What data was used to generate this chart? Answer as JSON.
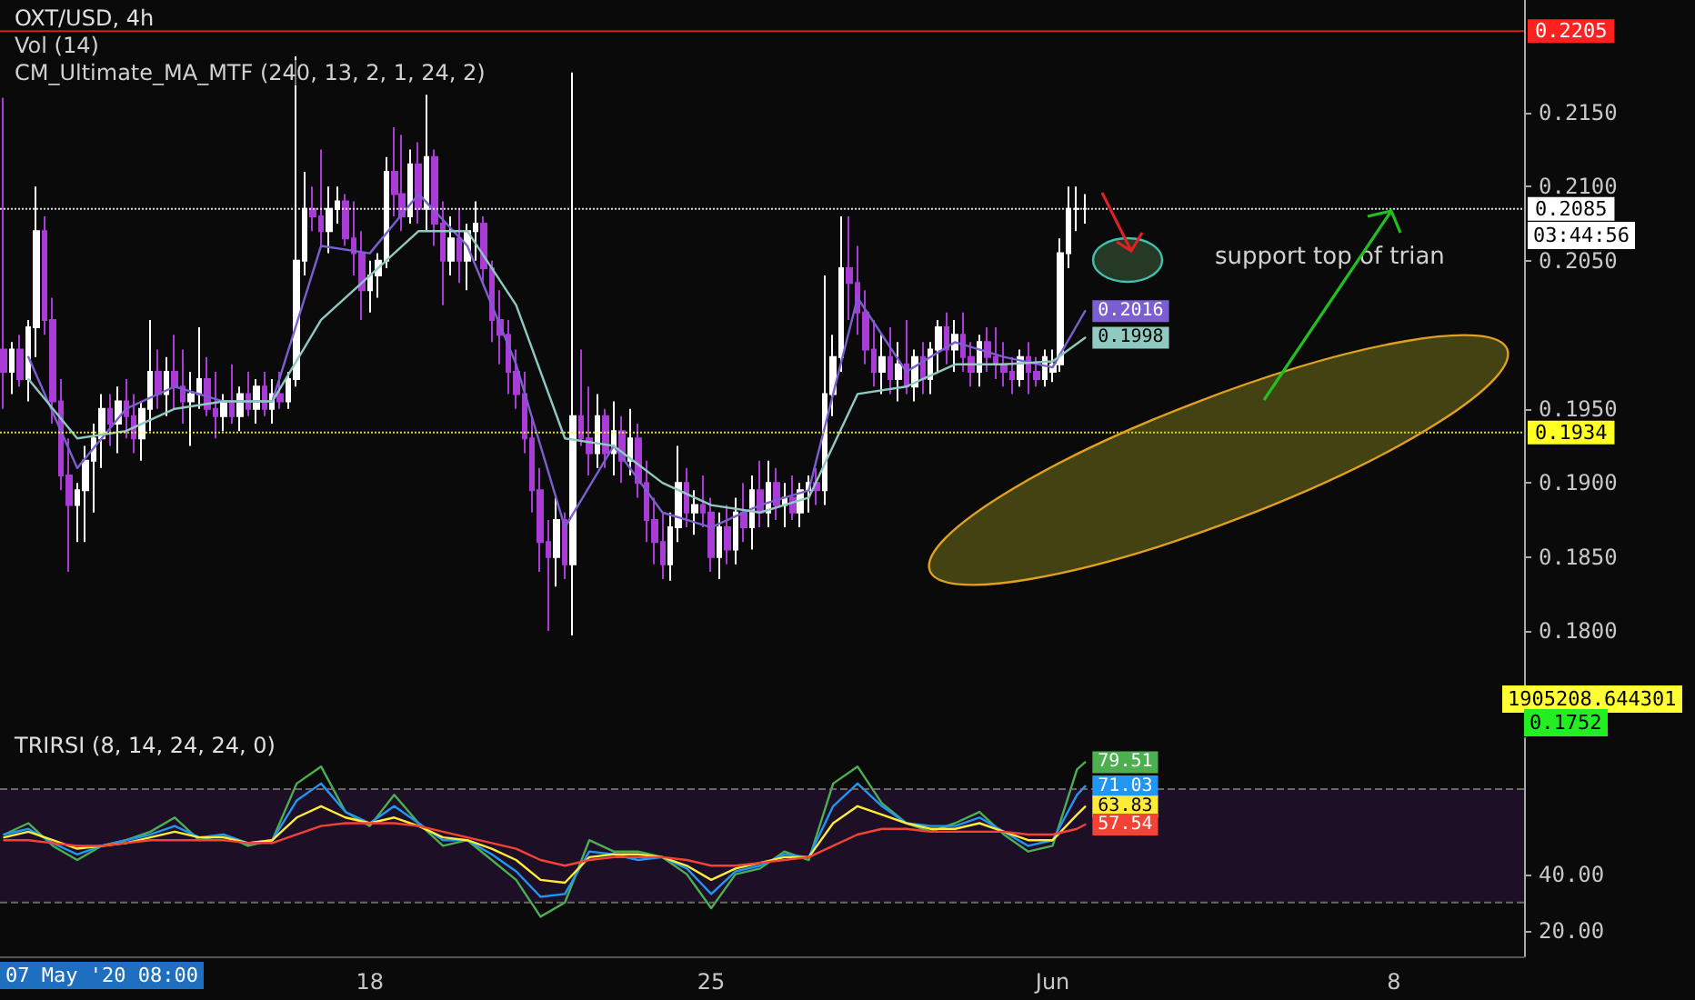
{
  "chart_data": [
    {
      "type": "candlestick",
      "title": "OXT/USD, 4h",
      "annotations": [
        "Vol (14)",
        "CM_Ultimate_MA_MTF (240, 13, 2, 1, 24, 2)",
        "support top of trian",
        "03:44:56",
        "1905208.644301",
        "0.1752"
      ],
      "x": [
        "2020-05-10T12:00",
        "2020-05-10T16:00",
        "2020-05-10T20:00",
        "2020-05-11T00:00",
        "2020-05-11T04:00",
        "2020-05-11T08:00",
        "2020-05-11T12:00",
        "2020-05-11T16:00",
        "2020-05-11T20:00",
        "2020-05-12T00:00",
        "2020-05-12T04:00",
        "2020-05-12T08:00",
        "2020-05-12T12:00",
        "2020-05-12T16:00",
        "2020-05-12T20:00",
        "2020-05-13T00:00",
        "2020-05-13T04:00",
        "2020-05-13T08:00",
        "2020-05-13T12:00",
        "2020-05-13T16:00",
        "2020-05-13T20:00",
        "2020-05-14T00:00",
        "2020-05-14T04:00",
        "2020-05-14T08:00",
        "2020-05-14T12:00",
        "2020-05-14T16:00",
        "2020-05-14T20:00",
        "2020-05-15T00:00",
        "2020-05-15T04:00",
        "2020-05-15T08:00",
        "2020-05-15T12:00",
        "2020-05-15T16:00",
        "2020-05-15T20:00",
        "2020-05-16T00:00",
        "2020-05-16T04:00",
        "2020-05-16T08:00",
        "2020-05-16T12:00",
        "2020-05-16T16:00",
        "2020-05-16T20:00",
        "2020-05-17T00:00",
        "2020-05-17T04:00",
        "2020-05-17T08:00",
        "2020-05-17T12:00",
        "2020-05-17T16:00",
        "2020-05-17T20:00",
        "2020-05-18T00:00",
        "2020-05-18T04:00",
        "2020-05-18T08:00",
        "2020-05-18T12:00",
        "2020-05-18T16:00",
        "2020-05-18T20:00",
        "2020-05-19T00:00",
        "2020-05-19T04:00",
        "2020-05-19T08:00",
        "2020-05-19T12:00",
        "2020-05-19T16:00",
        "2020-05-19T20:00",
        "2020-05-20T00:00",
        "2020-05-20T04:00",
        "2020-05-20T08:00",
        "2020-05-20T12:00",
        "2020-05-20T16:00",
        "2020-05-20T20:00",
        "2020-05-21T00:00",
        "2020-05-21T04:00",
        "2020-05-21T08:00",
        "2020-05-21T12:00",
        "2020-05-21T16:00",
        "2020-05-21T20:00",
        "2020-05-22T00:00",
        "2020-05-22T04:00",
        "2020-05-22T08:00",
        "2020-05-22T12:00",
        "2020-05-22T16:00",
        "2020-05-22T20:00",
        "2020-05-23T00:00",
        "2020-05-23T04:00",
        "2020-05-23T08:00",
        "2020-05-23T12:00",
        "2020-05-23T16:00",
        "2020-05-23T20:00",
        "2020-05-24T00:00",
        "2020-05-24T04:00",
        "2020-05-24T08:00",
        "2020-05-24T12:00",
        "2020-05-24T16:00",
        "2020-05-24T20:00",
        "2020-05-25T00:00",
        "2020-05-25T04:00",
        "2020-05-25T08:00",
        "2020-05-25T12:00",
        "2020-05-25T16:00",
        "2020-05-25T20:00",
        "2020-05-26T00:00",
        "2020-05-26T04:00",
        "2020-05-26T08:00",
        "2020-05-26T12:00",
        "2020-05-26T16:00",
        "2020-05-26T20:00",
        "2020-05-27T00:00",
        "2020-05-27T04:00",
        "2020-05-27T08:00",
        "2020-05-27T12:00",
        "2020-05-27T16:00",
        "2020-05-27T20:00",
        "2020-05-28T00:00",
        "2020-05-28T04:00",
        "2020-05-28T08:00",
        "2020-05-28T12:00",
        "2020-05-28T16:00",
        "2020-05-28T20:00",
        "2020-05-29T00:00",
        "2020-05-29T04:00",
        "2020-05-29T08:00",
        "2020-05-29T12:00",
        "2020-05-29T16:00",
        "2020-05-29T20:00",
        "2020-05-30T00:00",
        "2020-05-30T04:00",
        "2020-05-30T08:00",
        "2020-05-30T12:00",
        "2020-05-30T16:00",
        "2020-05-30T20:00",
        "2020-05-31T00:00",
        "2020-05-31T04:00",
        "2020-05-31T08:00",
        "2020-05-31T12:00",
        "2020-05-31T16:00",
        "2020-05-31T20:00",
        "2020-06-01T00:00",
        "2020-06-01T04:00",
        "2020-06-01T08:00",
        "2020-06-01T12:00",
        "2020-06-01T16:00"
      ],
      "ohlc": [
        [
          0.199,
          0.216,
          0.195,
          0.1975
        ],
        [
          0.1975,
          0.1995,
          0.196,
          0.199
        ],
        [
          0.199,
          0.2,
          0.1965,
          0.197
        ],
        [
          0.197,
          0.201,
          0.1955,
          0.2005
        ],
        [
          0.2005,
          0.21,
          0.1985,
          0.207
        ],
        [
          0.207,
          0.208,
          0.2,
          0.201
        ],
        [
          0.201,
          0.2025,
          0.194,
          0.1955
        ],
        [
          0.1955,
          0.197,
          0.1895,
          0.1905
        ],
        [
          0.1905,
          0.193,
          0.184,
          0.1885
        ],
        [
          0.1885,
          0.19,
          0.186,
          0.1895
        ],
        [
          0.1895,
          0.1925,
          0.186,
          0.1915
        ],
        [
          0.1915,
          0.194,
          0.188,
          0.193
        ],
        [
          0.193,
          0.196,
          0.191,
          0.195
        ],
        [
          0.195,
          0.196,
          0.1925,
          0.194
        ],
        [
          0.194,
          0.1965,
          0.192,
          0.1955
        ],
        [
          0.1955,
          0.197,
          0.193,
          0.1945
        ],
        [
          0.1945,
          0.196,
          0.192,
          0.193
        ],
        [
          0.193,
          0.1955,
          0.1915,
          0.195
        ],
        [
          0.195,
          0.201,
          0.1935,
          0.1975
        ],
        [
          0.1975,
          0.199,
          0.195,
          0.196
        ],
        [
          0.196,
          0.1985,
          0.1945,
          0.1975
        ],
        [
          0.1975,
          0.2,
          0.195,
          0.1965
        ],
        [
          0.1965,
          0.199,
          0.194,
          0.1955
        ],
        [
          0.1955,
          0.1975,
          0.1925,
          0.196
        ],
        [
          0.196,
          0.2005,
          0.195,
          0.197
        ],
        [
          0.197,
          0.1985,
          0.1945,
          0.195
        ],
        [
          0.195,
          0.1975,
          0.193,
          0.1945
        ],
        [
          0.1945,
          0.196,
          0.1935,
          0.1955
        ],
        [
          0.1955,
          0.198,
          0.194,
          0.1945
        ],
        [
          0.1945,
          0.1965,
          0.1935,
          0.196
        ],
        [
          0.196,
          0.1975,
          0.1945,
          0.195
        ],
        [
          0.195,
          0.197,
          0.194,
          0.1965
        ],
        [
          0.1965,
          0.1975,
          0.1945,
          0.195
        ],
        [
          0.195,
          0.197,
          0.194,
          0.196
        ],
        [
          0.196,
          0.1975,
          0.195,
          0.1955
        ],
        [
          0.1955,
          0.1975,
          0.195,
          0.197
        ],
        [
          0.197,
          0.2188,
          0.1965,
          0.205
        ],
        [
          0.205,
          0.211,
          0.204,
          0.2085
        ],
        [
          0.2085,
          0.21,
          0.207,
          0.208
        ],
        [
          0.208,
          0.2125,
          0.206,
          0.207
        ],
        [
          0.207,
          0.21,
          0.2055,
          0.2085
        ],
        [
          0.2085,
          0.21,
          0.2075,
          0.209
        ],
        [
          0.209,
          0.2095,
          0.206,
          0.2065
        ],
        [
          0.2065,
          0.209,
          0.204,
          0.2055
        ],
        [
          0.2055,
          0.207,
          0.201,
          0.203
        ],
        [
          0.203,
          0.205,
          0.2015,
          0.204
        ],
        [
          0.204,
          0.2055,
          0.2025,
          0.205
        ],
        [
          0.205,
          0.212,
          0.2045,
          0.211
        ],
        [
          0.211,
          0.214,
          0.208,
          0.2095
        ],
        [
          0.2095,
          0.2135,
          0.207,
          0.208
        ],
        [
          0.208,
          0.2125,
          0.2075,
          0.2115
        ],
        [
          0.2115,
          0.213,
          0.2075,
          0.2085
        ],
        [
          0.2085,
          0.2162,
          0.207,
          0.212
        ],
        [
          0.212,
          0.2125,
          0.206,
          0.2075
        ],
        [
          0.2075,
          0.209,
          0.202,
          0.205
        ],
        [
          0.205,
          0.208,
          0.204,
          0.2065
        ],
        [
          0.2065,
          0.2085,
          0.2035,
          0.205
        ],
        [
          0.205,
          0.2075,
          0.203,
          0.207
        ],
        [
          0.207,
          0.209,
          0.205,
          0.2075
        ],
        [
          0.2075,
          0.208,
          0.2035,
          0.2045
        ],
        [
          0.2045,
          0.205,
          0.1995,
          0.201
        ],
        [
          0.201,
          0.203,
          0.198,
          0.2
        ],
        [
          0.2,
          0.201,
          0.196,
          0.1975
        ],
        [
          0.1975,
          0.199,
          0.195,
          0.196
        ],
        [
          0.196,
          0.1975,
          0.192,
          0.193
        ],
        [
          0.193,
          0.1945,
          0.188,
          0.1895
        ],
        [
          0.1895,
          0.191,
          0.184,
          0.186
        ],
        [
          0.186,
          0.1875,
          0.18,
          0.185
        ],
        [
          0.185,
          0.189,
          0.183,
          0.1875
        ],
        [
          0.1875,
          0.188,
          0.1835,
          0.1845
        ],
        [
          0.1845,
          0.2177,
          0.1797,
          0.1945
        ],
        [
          0.1945,
          0.199,
          0.1925,
          0.193
        ],
        [
          0.193,
          0.1965,
          0.1905,
          0.192
        ],
        [
          0.192,
          0.196,
          0.191,
          0.1945
        ],
        [
          0.1945,
          0.195,
          0.191,
          0.192
        ],
        [
          0.192,
          0.1955,
          0.1905,
          0.1935
        ],
        [
          0.1935,
          0.1945,
          0.19,
          0.1915
        ],
        [
          0.1915,
          0.195,
          0.1905,
          0.193
        ],
        [
          0.193,
          0.194,
          0.189,
          0.19
        ],
        [
          0.19,
          0.1915,
          0.186,
          0.1875
        ],
        [
          0.1875,
          0.189,
          0.1845,
          0.186
        ],
        [
          0.186,
          0.188,
          0.1835,
          0.1845
        ],
        [
          0.1845,
          0.188,
          0.1834,
          0.187
        ],
        [
          0.187,
          0.1925,
          0.186,
          0.19
        ],
        [
          0.19,
          0.191,
          0.187,
          0.188
        ],
        [
          0.188,
          0.1895,
          0.1865,
          0.1885
        ],
        [
          0.1885,
          0.1905,
          0.187,
          0.188
        ],
        [
          0.188,
          0.189,
          0.184,
          0.185
        ],
        [
          0.185,
          0.188,
          0.1835,
          0.187
        ],
        [
          0.187,
          0.1885,
          0.1845,
          0.1855
        ],
        [
          0.1855,
          0.189,
          0.1845,
          0.188
        ],
        [
          0.188,
          0.19,
          0.186,
          0.187
        ],
        [
          0.187,
          0.1905,
          0.1855,
          0.1895
        ],
        [
          0.1895,
          0.1915,
          0.187,
          0.188
        ],
        [
          0.188,
          0.1915,
          0.187,
          0.19
        ],
        [
          0.19,
          0.191,
          0.1875,
          0.1885
        ],
        [
          0.1885,
          0.19,
          0.187,
          0.189
        ],
        [
          0.189,
          0.1905,
          0.1875,
          0.188
        ],
        [
          0.188,
          0.19,
          0.187,
          0.1895
        ],
        [
          0.1895,
          0.1905,
          0.188,
          0.19
        ],
        [
          0.19,
          0.191,
          0.1885,
          0.1895
        ],
        [
          0.1895,
          0.204,
          0.1885,
          0.196
        ],
        [
          0.196,
          0.2,
          0.1945,
          0.1985
        ],
        [
          0.1985,
          0.208,
          0.1975,
          0.2045
        ],
        [
          0.2045,
          0.208,
          0.201,
          0.2035
        ],
        [
          0.2035,
          0.206,
          0.2,
          0.2015
        ],
        [
          0.2015,
          0.203,
          0.198,
          0.199
        ],
        [
          0.199,
          0.201,
          0.1965,
          0.1975
        ],
        [
          0.1975,
          0.2,
          0.196,
          0.1985
        ],
        [
          0.1985,
          0.2005,
          0.196,
          0.197
        ],
        [
          0.197,
          0.1995,
          0.1955,
          0.198
        ],
        [
          0.198,
          0.201,
          0.196,
          0.1965
        ],
        [
          0.1965,
          0.199,
          0.1955,
          0.1985
        ],
        [
          0.1985,
          0.1995,
          0.196,
          0.197
        ],
        [
          0.197,
          0.1995,
          0.196,
          0.199
        ],
        [
          0.199,
          0.201,
          0.1975,
          0.2005
        ],
        [
          0.2005,
          0.2015,
          0.198,
          0.199
        ],
        [
          0.199,
          0.201,
          0.1975,
          0.2
        ],
        [
          0.2,
          0.2015,
          0.1975,
          0.1985
        ],
        [
          0.1985,
          0.1995,
          0.1965,
          0.1975
        ],
        [
          0.1975,
          0.2,
          0.1965,
          0.1995
        ],
        [
          0.1995,
          0.2005,
          0.1975,
          0.1985
        ],
        [
          0.1985,
          0.2005,
          0.197,
          0.198
        ],
        [
          0.198,
          0.1995,
          0.1965,
          0.1975
        ],
        [
          0.1975,
          0.1985,
          0.196,
          0.197
        ],
        [
          0.197,
          0.199,
          0.1965,
          0.1985
        ],
        [
          0.1985,
          0.1995,
          0.196,
          0.1975
        ],
        [
          0.1975,
          0.1985,
          0.1965,
          0.197
        ],
        [
          0.197,
          0.199,
          0.1965,
          0.1985
        ],
        [
          0.1975,
          0.199,
          0.1968,
          0.198
        ],
        [
          0.198,
          0.2065,
          0.1975,
          0.2055
        ],
        [
          0.2055,
          0.21,
          0.2045,
          0.2085
        ],
        [
          0.2085,
          0.21,
          0.207,
          0.2085
        ],
        [
          0.2085,
          0.2095,
          0.2075,
          0.2085
        ]
      ],
      "colors": [
        "#a93bd6",
        "#ffffff",
        "#a93bd6",
        "#ffffff",
        "#ffffff",
        "#a93bd6",
        "#a93bd6",
        "#a93bd6",
        "#a93bd6",
        "#ffffff",
        "#ffffff",
        "#ffffff",
        "#ffffff",
        "#a93bd6",
        "#ffffff",
        "#a93bd6",
        "#a93bd6",
        "#ffffff",
        "#ffffff",
        "#a93bd6",
        "#ffffff",
        "#a93bd6",
        "#a93bd6",
        "#ffffff",
        "#ffffff",
        "#a93bd6",
        "#a93bd6",
        "#ffffff",
        "#a93bd6",
        "#ffffff",
        "#a93bd6",
        "#ffffff",
        "#a93bd6",
        "#ffffff",
        "#a93bd6",
        "#ffffff",
        "#ffffff",
        "#ffffff",
        "#a93bd6",
        "#a93bd6",
        "#ffffff",
        "#ffffff",
        "#a93bd6",
        "#a93bd6",
        "#a93bd6",
        "#ffffff",
        "#ffffff",
        "#ffffff",
        "#a93bd6",
        "#a93bd6",
        "#ffffff",
        "#a93bd6",
        "#ffffff",
        "#a93bd6",
        "#a93bd6",
        "#ffffff",
        "#a93bd6",
        "#ffffff",
        "#ffffff",
        "#a93bd6",
        "#a93bd6",
        "#a93bd6",
        "#a93bd6",
        "#a93bd6",
        "#a93bd6",
        "#a93bd6",
        "#a93bd6",
        "#a93bd6",
        "#ffffff",
        "#a93bd6",
        "#ffffff",
        "#a93bd6",
        "#a93bd6",
        "#ffffff",
        "#a93bd6",
        "#ffffff",
        "#a93bd6",
        "#ffffff",
        "#a93bd6",
        "#a93bd6",
        "#a93bd6",
        "#a93bd6",
        "#ffffff",
        "#ffffff",
        "#a93bd6",
        "#ffffff",
        "#a93bd6",
        "#a93bd6",
        "#ffffff",
        "#a93bd6",
        "#ffffff",
        "#a93bd6",
        "#ffffff",
        "#a93bd6",
        "#ffffff",
        "#a93bd6",
        "#ffffff",
        "#a93bd6",
        "#ffffff",
        "#ffffff",
        "#a93bd6",
        "#ffffff",
        "#ffffff",
        "#ffffff",
        "#a93bd6",
        "#a93bd6",
        "#a93bd6",
        "#a93bd6",
        "#ffffff",
        "#a93bd6",
        "#ffffff",
        "#a93bd6",
        "#ffffff",
        "#a93bd6",
        "#ffffff",
        "#ffffff",
        "#a93bd6",
        "#ffffff",
        "#a93bd6",
        "#a93bd6",
        "#ffffff",
        "#a93bd6",
        "#a93bd6",
        "#a93bd6",
        "#a93bd6",
        "#ffffff",
        "#a93bd6",
        "#a93bd6",
        "#ffffff",
        "#ffffff",
        "#ffffff",
        "#ffffff",
        "#ffffff",
        "#ffffff"
      ],
      "series": [
        {
          "type": "line",
          "color": "#7b5fd0",
          "x": [
            "2020-05-11T00:00",
            "2020-05-12T00:00",
            "2020-05-13T00:00",
            "2020-05-14T00:00",
            "2020-05-15T00:00",
            "2020-05-16T00:00",
            "2020-05-17T00:00",
            "2020-05-18T00:00",
            "2020-05-19T00:00",
            "2020-05-20T00:00",
            "2020-05-21T00:00",
            "2020-05-22T00:00",
            "2020-05-23T00:00",
            "2020-05-24T00:00",
            "2020-05-25T00:00",
            "2020-05-26T00:00",
            "2020-05-27T00:00",
            "2020-05-28T00:00",
            "2020-05-29T00:00",
            "2020-05-30T00:00",
            "2020-05-31T00:00",
            "2020-06-01T00:00",
            "2020-06-01T16:00"
          ],
          "values": [
            0.1985,
            0.191,
            0.195,
            0.1965,
            0.1955,
            0.1955,
            0.206,
            0.2055,
            0.2095,
            0.206,
            0.198,
            0.187,
            0.1925,
            0.188,
            0.187,
            0.1885,
            0.1895,
            0.2025,
            0.1975,
            0.1995,
            0.1985,
            0.1978,
            0.2016
          ],
          "value_labels": [
            null,
            null,
            null,
            null,
            null,
            null,
            null,
            null,
            null,
            null,
            null,
            null,
            null,
            null,
            null,
            null,
            null,
            null,
            null,
            null,
            null,
            null,
            "0.2016"
          ]
        },
        {
          "type": "line",
          "color": "#8fc9c0",
          "x": [
            "2020-05-11T00:00",
            "2020-05-12T00:00",
            "2020-05-13T00:00",
            "2020-05-14T00:00",
            "2020-05-15T00:00",
            "2020-05-16T00:00",
            "2020-05-17T00:00",
            "2020-05-18T00:00",
            "2020-05-19T00:00",
            "2020-05-20T00:00",
            "2020-05-21T00:00",
            "2020-05-22T00:00",
            "2020-05-23T00:00",
            "2020-05-24T00:00",
            "2020-05-25T00:00",
            "2020-05-26T00:00",
            "2020-05-27T00:00",
            "2020-05-28T00:00",
            "2020-05-29T00:00",
            "2020-05-30T00:00",
            "2020-05-31T00:00",
            "2020-06-01T00:00",
            "2020-06-01T16:00"
          ],
          "values": [
            0.197,
            0.193,
            0.1935,
            0.195,
            0.1955,
            0.1955,
            0.201,
            0.204,
            0.207,
            0.207,
            0.202,
            0.193,
            0.1925,
            0.19,
            0.1885,
            0.188,
            0.189,
            0.196,
            0.1965,
            0.198,
            0.198,
            0.1982,
            0.1998
          ],
          "value_labels": [
            null,
            null,
            null,
            null,
            null,
            null,
            null,
            null,
            null,
            null,
            null,
            null,
            null,
            null,
            null,
            null,
            null,
            null,
            null,
            null,
            null,
            null,
            "0.1998"
          ]
        }
      ],
      "xlim": [
        "2020-05-10T10:00",
        "2020-06-10T16:00"
      ],
      "ylim": [
        0.1735,
        0.2226
      ],
      "yticks": [
        {
          "value": 0.18,
          "label": "0.1800"
        },
        {
          "value": 0.185,
          "label": "0.1850"
        },
        {
          "value": 0.19,
          "label": "0.1900"
        },
        {
          "value": 0.195,
          "label": "0.1950"
        },
        {
          "value": 0.205,
          "label": "0.2050"
        },
        {
          "value": 0.21,
          "label": "0.2100"
        },
        {
          "value": 0.215,
          "label": "0.2150"
        }
      ],
      "ref_lines": [
        {
          "axis": "y",
          "value": 0.2205,
          "label": "0.2205",
          "color": "#ff2020",
          "line_style": "solid"
        },
        {
          "axis": "y",
          "value": 0.2085,
          "label": "0.2085",
          "color": "#ffffff",
          "line_style": "dotted"
        },
        {
          "axis": "y",
          "value": 0.1934,
          "label": "0.1934",
          "color": "#ffff22",
          "line_style": "dotted"
        }
      ],
      "tick_labels": "y"
    },
    {
      "type": "line",
      "title": "TRIRSI (8, 14, 24, 24, 0)",
      "annotations": [
        "07 May '20 08:00"
      ],
      "x": [
        "2020-05-10T12:00",
        "2020-05-11T00:00",
        "2020-05-11T12:00",
        "2020-05-12T00:00",
        "2020-05-12T12:00",
        "2020-05-13T00:00",
        "2020-05-13T12:00",
        "2020-05-14T00:00",
        "2020-05-14T12:00",
        "2020-05-15T00:00",
        "2020-05-15T12:00",
        "2020-05-16T00:00",
        "2020-05-16T12:00",
        "2020-05-17T00:00",
        "2020-05-17T12:00",
        "2020-05-18T00:00",
        "2020-05-18T12:00",
        "2020-05-19T00:00",
        "2020-05-19T12:00",
        "2020-05-20T00:00",
        "2020-05-20T12:00",
        "2020-05-21T00:00",
        "2020-05-21T12:00",
        "2020-05-22T00:00",
        "2020-05-22T12:00",
        "2020-05-23T00:00",
        "2020-05-23T12:00",
        "2020-05-24T00:00",
        "2020-05-24T12:00",
        "2020-05-25T00:00",
        "2020-05-25T12:00",
        "2020-05-26T00:00",
        "2020-05-26T12:00",
        "2020-05-27T00:00",
        "2020-05-27T12:00",
        "2020-05-28T00:00",
        "2020-05-28T12:00",
        "2020-05-29T00:00",
        "2020-05-29T12:00",
        "2020-05-30T00:00",
        "2020-05-30T12:00",
        "2020-05-31T00:00",
        "2020-05-31T12:00",
        "2020-06-01T00:00",
        "2020-06-01T12:00",
        "2020-06-01T16:00"
      ],
      "series": [
        {
          "color": "#4caf50",
          "values": [
            54,
            58,
            50,
            45,
            50,
            52,
            55,
            60,
            52,
            54,
            50,
            52,
            72,
            78,
            62,
            57,
            68,
            58,
            50,
            52,
            45,
            38,
            25,
            30,
            52,
            48,
            48,
            46,
            40,
            28,
            40,
            42,
            48,
            45,
            72,
            78,
            65,
            58,
            55,
            58,
            62,
            54,
            48,
            50,
            77,
            79.51
          ],
          "value_labels": [
            null,
            null,
            null,
            null,
            null,
            null,
            null,
            null,
            null,
            null,
            null,
            null,
            null,
            null,
            null,
            null,
            null,
            null,
            null,
            null,
            null,
            null,
            null,
            null,
            null,
            null,
            null,
            null,
            null,
            null,
            null,
            null,
            null,
            null,
            null,
            null,
            null,
            null,
            null,
            null,
            null,
            null,
            null,
            null,
            null,
            "79.51"
          ]
        },
        {
          "color": "#2196f3",
          "values": [
            54,
            56,
            51,
            47,
            50,
            52,
            54,
            57,
            53,
            54,
            51,
            52,
            66,
            72,
            62,
            58,
            64,
            58,
            52,
            52,
            47,
            41,
            32,
            33,
            48,
            47,
            45,
            46,
            42,
            33,
            41,
            43,
            47,
            46,
            64,
            72,
            64,
            58,
            57,
            57,
            60,
            55,
            50,
            52,
            68,
            71.03
          ],
          "value_labels": [
            null,
            null,
            null,
            null,
            null,
            null,
            null,
            null,
            null,
            null,
            null,
            null,
            null,
            null,
            null,
            null,
            null,
            null,
            null,
            null,
            null,
            null,
            null,
            null,
            null,
            null,
            null,
            null,
            null,
            null,
            null,
            null,
            null,
            null,
            null,
            null,
            null,
            null,
            null,
            null,
            null,
            null,
            null,
            null,
            null,
            "71.03"
          ]
        },
        {
          "color": "#ffeb3b",
          "values": [
            53,
            55,
            52,
            49,
            50,
            51,
            53,
            55,
            53,
            53,
            51,
            52,
            60,
            64,
            60,
            58,
            60,
            57,
            53,
            52,
            49,
            45,
            38,
            37,
            46,
            47,
            47,
            46,
            43,
            38,
            42,
            44,
            46,
            46,
            58,
            64,
            61,
            58,
            56,
            56,
            58,
            55,
            52,
            52,
            61,
            63.83
          ],
          "value_labels": [
            null,
            null,
            null,
            null,
            null,
            null,
            null,
            null,
            null,
            null,
            null,
            null,
            null,
            null,
            null,
            null,
            null,
            null,
            null,
            null,
            null,
            null,
            null,
            null,
            null,
            null,
            null,
            null,
            null,
            null,
            null,
            null,
            null,
            null,
            null,
            null,
            null,
            null,
            null,
            null,
            null,
            null,
            null,
            null,
            null,
            "63.83"
          ]
        },
        {
          "color": "#f44336",
          "values": [
            52,
            52,
            51,
            50,
            50,
            51,
            52,
            52,
            52,
            52,
            51,
            51,
            54,
            57,
            58,
            58,
            58,
            57,
            55,
            53,
            51,
            49,
            45,
            43,
            45,
            46,
            46,
            46,
            45,
            43,
            43,
            44,
            45,
            46,
            50,
            54,
            56,
            56,
            55,
            55,
            55,
            55,
            54,
            54,
            56,
            57.54
          ],
          "value_labels": [
            null,
            null,
            null,
            null,
            null,
            null,
            null,
            null,
            null,
            null,
            null,
            null,
            null,
            null,
            null,
            null,
            null,
            null,
            null,
            null,
            null,
            null,
            null,
            null,
            null,
            null,
            null,
            null,
            null,
            null,
            null,
            null,
            null,
            null,
            null,
            null,
            null,
            null,
            null,
            null,
            null,
            null,
            null,
            null,
            null,
            "57.54"
          ]
        }
      ],
      "xlim": [
        "2020-05-10T10:00",
        "2020-06-10T16:00"
      ],
      "xticks": [
        {
          "value": "2020-05-18",
          "label": "18"
        },
        {
          "value": "2020-05-25",
          "label": "25"
        },
        {
          "value": "2020-06-01",
          "label": "Jun"
        },
        {
          "value": "2020-06-08",
          "label": "8"
        }
      ],
      "ylim": [
        11,
        88
      ],
      "yticks": [
        {
          "value": 20,
          "label": "20.00"
        },
        {
          "value": 40,
          "label": "40.00"
        }
      ],
      "ref_lines": [
        {
          "axis": "y",
          "value": 70,
          "label": null,
          "color": "#787878",
          "line_style": "dashed"
        },
        {
          "axis": "y",
          "value": 30,
          "label": null,
          "color": "#787878",
          "line_style": "dashed"
        }
      ],
      "bands": [
        {
          "axis": "y",
          "from": 30,
          "to": 70,
          "label": null,
          "color": "#1c0f26"
        }
      ],
      "marker": "none"
    }
  ]
}
